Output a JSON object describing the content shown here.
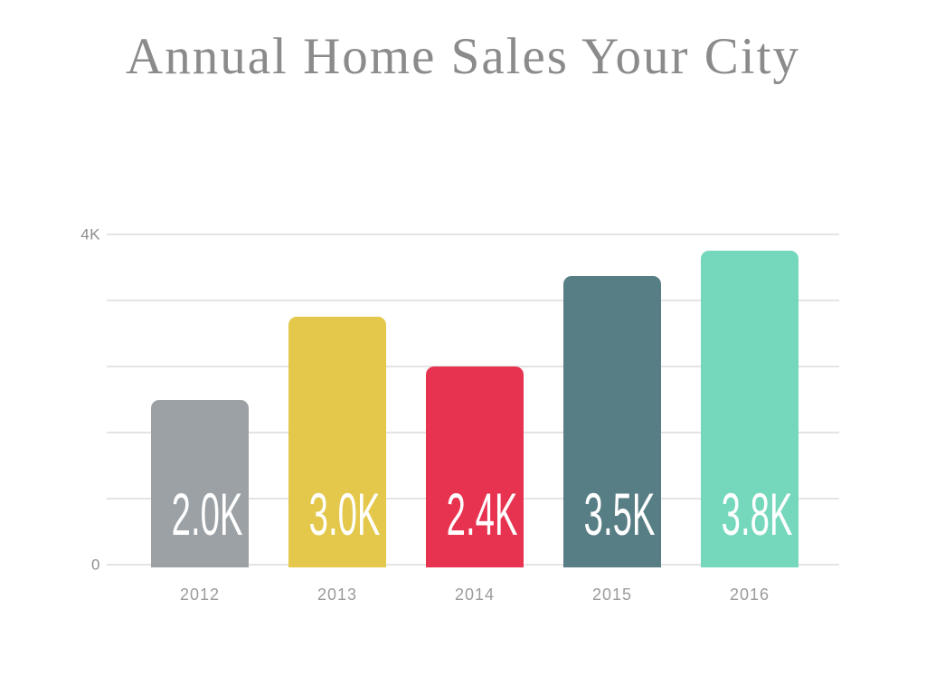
{
  "chart_data": {
    "type": "bar",
    "title": "Annual Home Sales Your City",
    "categories": [
      "2012",
      "2013",
      "2014",
      "2015",
      "2016"
    ],
    "values": [
      2000,
      3000,
      2400,
      3500,
      3800
    ],
    "bar_labels": [
      "2.0K",
      "3.0K",
      "2.4K",
      "3.5K",
      "3.8K"
    ],
    "bar_colors": [
      "#9ca1a5",
      "#e4c84b",
      "#e7334f",
      "#587e85",
      "#75d8bd"
    ],
    "bar_label_color": "#ffffff",
    "xlabel": "",
    "ylabel": "",
    "ylim": [
      0,
      4000
    ],
    "gridline_step": 800,
    "y_tick_labels": [
      {
        "value": 4000,
        "label": "4K"
      },
      {
        "value": 0,
        "label": "0"
      }
    ],
    "grid": "horizontal",
    "gridline_color": "#e4e4e4",
    "legend": "none",
    "title_color": "#8b8b8b",
    "axis_text_color": "#9b9b9b"
  }
}
